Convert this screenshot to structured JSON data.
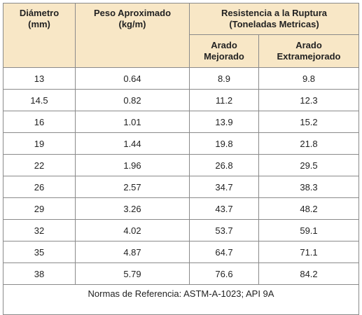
{
  "table": {
    "header": {
      "diametro": [
        "Diámetro",
        "(mm)"
      ],
      "peso": [
        "Peso Aproximado",
        "(kg/m)"
      ],
      "resistencia": [
        "Resistencia a la Ruptura",
        "(Toneladas Metricas)"
      ],
      "arado_mejorado": [
        "Arado",
        "Mejorado"
      ],
      "arado_extramejorado": [
        "Arado",
        "Extramejorado"
      ]
    },
    "rows": [
      [
        "13",
        "0.64",
        "8.9",
        "9.8"
      ],
      [
        "14.5",
        "0.82",
        "11.2",
        "12.3"
      ],
      [
        "16",
        "1.01",
        "13.9",
        "15.2"
      ],
      [
        "19",
        "1.44",
        "19.8",
        "21.8"
      ],
      [
        "22",
        "1.96",
        "26.8",
        "29.5"
      ],
      [
        "26",
        "2.57",
        "34.7",
        "38.3"
      ],
      [
        "29",
        "3.26",
        "43.7",
        "48.2"
      ],
      [
        "32",
        "4.02",
        "53.7",
        "59.1"
      ],
      [
        "35",
        "4.87",
        "64.7",
        "71.1"
      ],
      [
        "38",
        "5.79",
        "76.6",
        "84.2"
      ]
    ],
    "footer": "Normas de Referencia:  ASTM-A-1023; API 9A"
  }
}
